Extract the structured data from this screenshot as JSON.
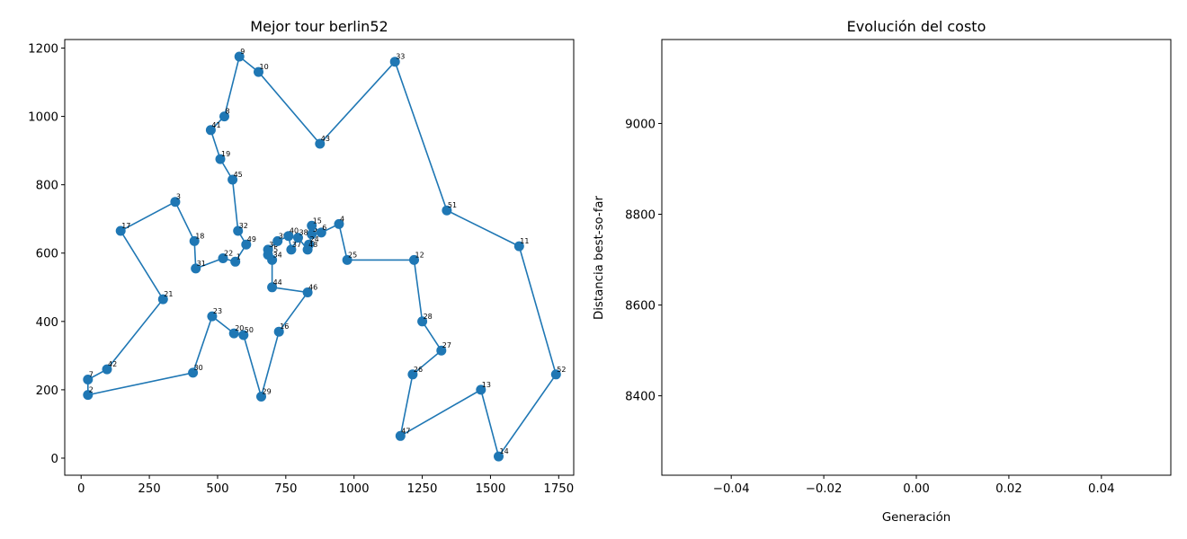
{
  "chart_data": [
    {
      "type": "line",
      "title": "Mejor tour berlin52",
      "xlabel": "",
      "ylabel": "",
      "xlim": [
        -60,
        1805
      ],
      "ylim": [
        -50,
        1225
      ],
      "xticks": [
        0,
        250,
        500,
        750,
        1000,
        1250,
        1500,
        1750
      ],
      "yticks": [
        0,
        200,
        400,
        600,
        800,
        1000,
        1200
      ],
      "color": "#1f77b4",
      "grid": false,
      "cities": [
        {
          "id": "1",
          "x": 565,
          "y": 575
        },
        {
          "id": "2",
          "x": 25,
          "y": 185
        },
        {
          "id": "3",
          "x": 345,
          "y": 750
        },
        {
          "id": "4",
          "x": 945,
          "y": 685
        },
        {
          "id": "5",
          "x": 845,
          "y": 655
        },
        {
          "id": "6",
          "x": 880,
          "y": 660
        },
        {
          "id": "7",
          "x": 25,
          "y": 230
        },
        {
          "id": "8",
          "x": 525,
          "y": 1000
        },
        {
          "id": "9",
          "x": 580,
          "y": 1175
        },
        {
          "id": "10",
          "x": 650,
          "y": 1130
        },
        {
          "id": "11",
          "x": 1605,
          "y": 620
        },
        {
          "id": "12",
          "x": 1220,
          "y": 580
        },
        {
          "id": "13",
          "x": 1465,
          "y": 200
        },
        {
          "id": "14",
          "x": 1530,
          "y": 5
        },
        {
          "id": "15",
          "x": 845,
          "y": 680
        },
        {
          "id": "16",
          "x": 725,
          "y": 370
        },
        {
          "id": "17",
          "x": 145,
          "y": 665
        },
        {
          "id": "18",
          "x": 415,
          "y": 635
        },
        {
          "id": "19",
          "x": 510,
          "y": 875
        },
        {
          "id": "20",
          "x": 560,
          "y": 365
        },
        {
          "id": "21",
          "x": 300,
          "y": 465
        },
        {
          "id": "22",
          "x": 520,
          "y": 585
        },
        {
          "id": "23",
          "x": 480,
          "y": 415
        },
        {
          "id": "24",
          "x": 835,
          "y": 625
        },
        {
          "id": "25",
          "x": 975,
          "y": 580
        },
        {
          "id": "26",
          "x": 1215,
          "y": 245
        },
        {
          "id": "27",
          "x": 1320,
          "y": 315
        },
        {
          "id": "28",
          "x": 1250,
          "y": 400
        },
        {
          "id": "29",
          "x": 660,
          "y": 180
        },
        {
          "id": "30",
          "x": 410,
          "y": 250
        },
        {
          "id": "31",
          "x": 420,
          "y": 555
        },
        {
          "id": "32",
          "x": 575,
          "y": 665
        },
        {
          "id": "33",
          "x": 1150,
          "y": 1160
        },
        {
          "id": "34",
          "x": 700,
          "y": 580
        },
        {
          "id": "35",
          "x": 685,
          "y": 595
        },
        {
          "id": "36",
          "x": 685,
          "y": 610
        },
        {
          "id": "37",
          "x": 770,
          "y": 610
        },
        {
          "id": "38",
          "x": 795,
          "y": 645
        },
        {
          "id": "39",
          "x": 720,
          "y": 635
        },
        {
          "id": "40",
          "x": 760,
          "y": 650
        },
        {
          "id": "41",
          "x": 475,
          "y": 960
        },
        {
          "id": "42",
          "x": 95,
          "y": 260
        },
        {
          "id": "43",
          "x": 875,
          "y": 920
        },
        {
          "id": "44",
          "x": 700,
          "y": 500
        },
        {
          "id": "45",
          "x": 555,
          "y": 815
        },
        {
          "id": "46",
          "x": 830,
          "y": 485
        },
        {
          "id": "47",
          "x": 1170,
          "y": 65
        },
        {
          "id": "48",
          "x": 830,
          "y": 610
        },
        {
          "id": "49",
          "x": 605,
          "y": 625
        },
        {
          "id": "50",
          "x": 595,
          "y": 360
        },
        {
          "id": "51",
          "x": 1340,
          "y": 725
        },
        {
          "id": "52",
          "x": 1740,
          "y": 245
        }
      ],
      "tour": [
        "1",
        "22",
        "31",
        "18",
        "3",
        "17",
        "21",
        "42",
        "7",
        "2",
        "30",
        "23",
        "20",
        "50",
        "29",
        "16",
        "46",
        "44",
        "34",
        "35",
        "36",
        "39",
        "40",
        "37",
        "38",
        "48",
        "24",
        "5",
        "15",
        "6",
        "4",
        "25",
        "12",
        "28",
        "27",
        "26",
        "47",
        "13",
        "14",
        "52",
        "11",
        "51",
        "33",
        "43",
        "10",
        "9",
        "8",
        "41",
        "19",
        "45",
        "32",
        "49",
        "1"
      ]
    },
    {
      "type": "line",
      "title": "Evolución del costo",
      "xlabel": "Generación",
      "ylabel": "Distancia best-so-far",
      "xlim": [
        -0.055,
        0.055
      ],
      "ylim": [
        8225,
        9185
      ],
      "xticks": [
        -0.04,
        -0.02,
        0.0,
        0.02,
        0.04
      ],
      "xtick_labels": [
        "−0.04",
        "−0.02",
        "0.00",
        "0.02",
        "0.04"
      ],
      "yticks": [
        8400,
        8600,
        8800,
        9000
      ],
      "series": [],
      "grid": false
    }
  ]
}
